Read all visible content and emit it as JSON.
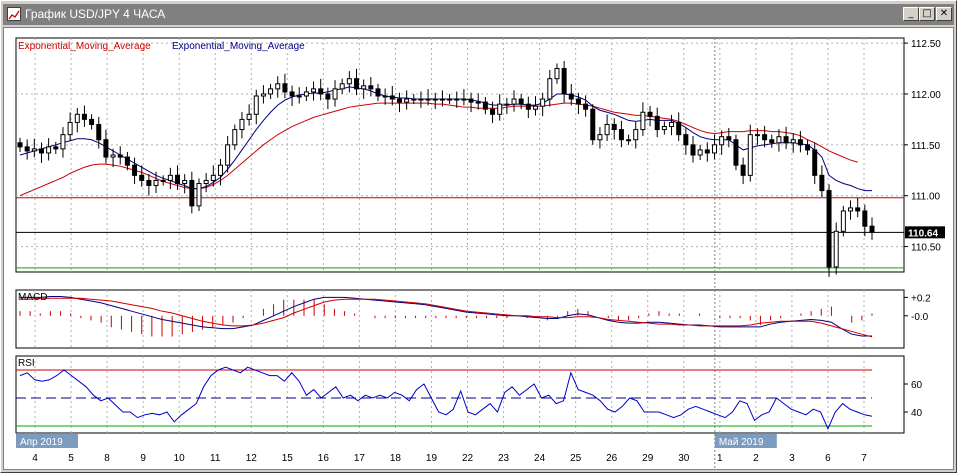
{
  "window": {
    "title": "График USD/JPY 4 ЧАСА",
    "icon": "chart-window-icon",
    "buttons": [
      {
        "name": "minimize-button",
        "symbol": "_"
      },
      {
        "name": "maximize-button",
        "symbol": "□"
      },
      {
        "name": "close-button",
        "symbol": "✕"
      }
    ]
  },
  "colors": {
    "background": "#ffffff",
    "grid": "#b0b0b0",
    "candle": "#000000",
    "ema_slow": "#cc0000",
    "ema_fast": "#000080",
    "macd_main": "#000080",
    "macd_signal": "#cc0000",
    "macd_hist": "#cc0000",
    "rsi_line": "#0000cc",
    "upper_level": "#cc0000",
    "lower_level": "#00aa00",
    "current_price_line": "#000000",
    "period_label_bg": "#7b9cbf"
  },
  "chart_data": [
    {
      "type": "candlestick",
      "title": "",
      "legend": [
        {
          "text": "Exponential_Moving_Average",
          "color": "#cc0000"
        },
        {
          "text": "Exponential_Moving_Average",
          "color": "#000080"
        }
      ],
      "legend_position": "top-left",
      "grid": true,
      "ylim": [
        110.25,
        112.55
      ],
      "y_ticks": [
        "112.50",
        "112.00",
        "111.50",
        "111.00",
        "110.50"
      ],
      "current_price_label": "110.64",
      "current_price": 110.64,
      "horizontal_levels": [
        {
          "value": 110.98,
          "color": "#cc0000"
        },
        {
          "value": 110.29,
          "color": "#00aa00"
        }
      ],
      "x_labels": [
        "4",
        "5",
        "8",
        "9",
        "10",
        "11",
        "12",
        "15",
        "16",
        "17",
        "18",
        "19",
        "22",
        "23",
        "24",
        "25",
        "26",
        "29",
        "30",
        "1",
        "2",
        "3",
        "6",
        "7"
      ],
      "period_labels": [
        "Апр 2019",
        "Май 2019"
      ],
      "close": [
        111.48,
        111.44,
        111.46,
        111.42,
        111.48,
        111.46,
        111.6,
        111.72,
        111.8,
        111.75,
        111.7,
        111.55,
        111.38,
        111.4,
        111.38,
        111.3,
        111.2,
        111.15,
        111.1,
        111.15,
        111.15,
        111.2,
        111.12,
        111.15,
        110.9,
        111.12,
        111.15,
        111.2,
        111.3,
        111.5,
        111.65,
        111.75,
        111.8,
        111.98,
        112.0,
        112.05,
        112.1,
        112.02,
        111.98,
        111.98,
        112.02,
        112.05,
        112.0,
        111.95,
        112.05,
        112.1,
        112.15,
        112.05,
        112.08,
        112.05,
        111.98,
        111.98,
        111.95,
        111.92,
        111.95,
        111.95,
        111.95,
        111.95,
        111.95,
        111.95,
        111.95,
        111.95,
        111.95,
        111.92,
        111.92,
        111.85,
        111.8,
        111.9,
        111.9,
        111.95,
        111.9,
        111.85,
        111.88,
        111.95,
        112.15,
        112.25,
        112.0,
        111.95,
        111.9,
        111.85,
        111.55,
        111.6,
        111.7,
        111.65,
        111.55,
        111.55,
        111.65,
        111.82,
        111.78,
        111.65,
        111.68,
        111.72,
        111.6,
        111.5,
        111.4,
        111.45,
        111.42,
        111.5,
        111.58,
        111.55,
        111.3,
        111.2,
        111.6,
        111.6,
        111.55,
        111.52,
        111.58,
        111.52,
        111.55,
        111.5,
        111.45,
        111.2,
        111.05,
        110.3,
        110.65,
        110.85,
        110.88,
        110.85,
        110.7,
        110.64
      ],
      "ema_slow": [
        111.0,
        111.03,
        111.06,
        111.09,
        111.12,
        111.15,
        111.18,
        111.22,
        111.25,
        111.28,
        111.3,
        111.31,
        111.31,
        111.3,
        111.29,
        111.27,
        111.25,
        111.23,
        111.2,
        111.17,
        111.14,
        111.12,
        111.1,
        111.08,
        111.07,
        111.07,
        111.08,
        111.11,
        111.15,
        111.2,
        111.26,
        111.32,
        111.38,
        111.44,
        111.5,
        111.55,
        111.6,
        111.64,
        111.68,
        111.71,
        111.74,
        111.77,
        111.79,
        111.81,
        111.83,
        111.85,
        111.87,
        111.88,
        111.89,
        111.9,
        111.91,
        111.91,
        111.91,
        111.91,
        111.91,
        111.91,
        111.91,
        111.91,
        111.9,
        111.9,
        111.89,
        111.88,
        111.87,
        111.87,
        111.86,
        111.86,
        111.86,
        111.86,
        111.87,
        111.88,
        111.88,
        111.88,
        111.88,
        111.88,
        111.89,
        111.9,
        111.91,
        111.91,
        111.9,
        111.89,
        111.88,
        111.86,
        111.84,
        111.82,
        111.81,
        111.8,
        111.79,
        111.79,
        111.78,
        111.77,
        111.76,
        111.75,
        111.73,
        111.7,
        111.67,
        111.64,
        111.62,
        111.61,
        111.62,
        111.63,
        111.63,
        111.63,
        111.64,
        111.64,
        111.64,
        111.63,
        111.63,
        111.62,
        111.61,
        111.59,
        111.55,
        111.52,
        111.48,
        111.44,
        111.41,
        111.38,
        111.35,
        111.33
      ],
      "ema_fast": [
        111.4,
        111.42,
        111.44,
        111.46,
        111.48,
        111.5,
        111.52,
        111.54,
        111.56,
        111.56,
        111.55,
        111.52,
        111.48,
        111.44,
        111.4,
        111.36,
        111.32,
        111.28,
        111.24,
        111.2,
        111.17,
        111.15,
        111.12,
        111.1,
        111.07,
        111.07,
        111.09,
        111.13,
        111.18,
        111.26,
        111.35,
        111.45,
        111.55,
        111.65,
        111.74,
        111.82,
        111.89,
        111.94,
        111.97,
        111.99,
        112.0,
        112.01,
        112.01,
        112.02,
        112.04,
        112.05,
        112.07,
        112.06,
        112.05,
        112.03,
        112.0,
        111.98,
        111.97,
        111.96,
        111.96,
        111.95,
        111.95,
        111.95,
        111.95,
        111.95,
        111.95,
        111.95,
        111.95,
        111.94,
        111.93,
        111.91,
        111.89,
        111.89,
        111.89,
        111.9,
        111.9,
        111.89,
        111.89,
        111.91,
        111.95,
        112.0,
        112.0,
        111.99,
        111.97,
        111.94,
        111.88,
        111.84,
        111.82,
        111.8,
        111.77,
        111.74,
        111.73,
        111.74,
        111.75,
        111.74,
        111.74,
        111.74,
        111.71,
        111.67,
        111.62,
        111.58,
        111.56,
        111.55,
        111.55,
        111.55,
        111.5,
        111.45,
        111.47,
        111.49,
        111.5,
        111.51,
        111.52,
        111.52,
        111.52,
        111.51,
        111.5,
        111.45,
        111.38,
        111.2,
        111.15,
        111.12,
        111.1,
        111.07,
        111.05,
        111.05
      ]
    },
    {
      "type": "line",
      "title": "MACD",
      "ylim": [
        -0.35,
        0.28
      ],
      "y_ticks": [
        "+0.2",
        "-0.0"
      ],
      "main": [
        0.2,
        0.2,
        0.2,
        0.21,
        0.21,
        0.2,
        0.18,
        0.16,
        0.14,
        0.11,
        0.08,
        0.05,
        0.02,
        -0.01,
        -0.04,
        -0.06,
        -0.08,
        -0.1,
        -0.12,
        -0.13,
        -0.14,
        -0.14,
        -0.12,
        -0.1,
        -0.05,
        0.0,
        0.05,
        0.1,
        0.14,
        0.18,
        0.2,
        0.2,
        0.2,
        0.19,
        0.18,
        0.17,
        0.16,
        0.15,
        0.14,
        0.13,
        0.12,
        0.1,
        0.08,
        0.06,
        0.04,
        0.03,
        0.02,
        0.01,
        0.0,
        0.0,
        -0.01,
        -0.02,
        -0.03,
        -0.03,
        0.0,
        0.02,
        0.01,
        -0.02,
        -0.05,
        -0.07,
        -0.08,
        -0.08,
        -0.07,
        -0.07,
        -0.08,
        -0.09,
        -0.1,
        -0.1,
        -0.11,
        -0.12,
        -0.12,
        -0.12,
        -0.12,
        -0.12,
        -0.09,
        -0.07,
        -0.06,
        -0.05,
        -0.04,
        -0.05,
        -0.07,
        -0.14,
        -0.2,
        -0.22,
        -0.22
      ],
      "signal": [
        0.18,
        0.18,
        0.19,
        0.19,
        0.19,
        0.19,
        0.19,
        0.18,
        0.17,
        0.16,
        0.14,
        0.12,
        0.1,
        0.08,
        0.05,
        0.03,
        0.0,
        -0.03,
        -0.06,
        -0.08,
        -0.1,
        -0.11,
        -0.11,
        -0.1,
        -0.08,
        -0.05,
        -0.02,
        0.03,
        0.07,
        0.11,
        0.15,
        0.17,
        0.18,
        0.18,
        0.18,
        0.18,
        0.17,
        0.16,
        0.15,
        0.14,
        0.13,
        0.11,
        0.09,
        0.07,
        0.05,
        0.04,
        0.03,
        0.02,
        0.01,
        0.0,
        0.0,
        -0.01,
        -0.01,
        -0.02,
        -0.02,
        -0.01,
        -0.01,
        -0.02,
        -0.04,
        -0.05,
        -0.06,
        -0.07,
        -0.08,
        -0.09,
        -0.09,
        -0.1,
        -0.1,
        -0.11,
        -0.11,
        -0.11,
        -0.11,
        -0.11,
        -0.1,
        -0.08,
        -0.07,
        -0.06,
        -0.06,
        -0.06,
        -0.06,
        -0.08,
        -0.11,
        -0.14,
        -0.17,
        -0.2,
        -0.23
      ]
    },
    {
      "type": "line",
      "title": "RSI",
      "ylim": [
        25,
        80
      ],
      "y_ticks": [
        "60",
        "40"
      ],
      "levels": [
        70,
        50,
        30
      ],
      "values": [
        66,
        68,
        63,
        62,
        63,
        66,
        70,
        66,
        62,
        58,
        52,
        48,
        50,
        45,
        40,
        40,
        36,
        38,
        39,
        38,
        40,
        33,
        38,
        42,
        46,
        58,
        66,
        70,
        72,
        70,
        68,
        72,
        70,
        68,
        66,
        66,
        62,
        68,
        62,
        52,
        56,
        50,
        54,
        58,
        50,
        52,
        48,
        52,
        50,
        52,
        50,
        54,
        52,
        48,
        56,
        60,
        50,
        40,
        38,
        42,
        55,
        40,
        38,
        42,
        46,
        40,
        54,
        58,
        52,
        56,
        60,
        50,
        52,
        46,
        48,
        68,
        56,
        54,
        52,
        48,
        42,
        40,
        44,
        50,
        48,
        40,
        40,
        40,
        38,
        36,
        38,
        42,
        44,
        42,
        40,
        38,
        36,
        40,
        48,
        46,
        34,
        38,
        40,
        50,
        46,
        42,
        40,
        38,
        42,
        40,
        28,
        40,
        46,
        42,
        40,
        38,
        37
      ]
    }
  ]
}
